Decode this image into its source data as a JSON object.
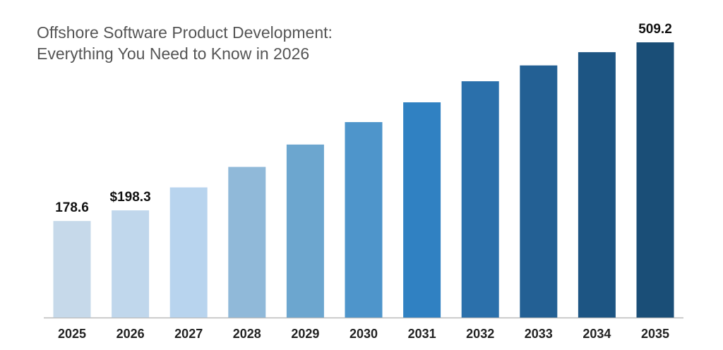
{
  "chart_data": {
    "type": "bar",
    "title": "Offshore Software Product Development:",
    "subtitle": "Everything You Need to Know in 2026",
    "categories": [
      "2025",
      "2026",
      "2027",
      "2028",
      "2029",
      "2030",
      "2031",
      "2032",
      "2033",
      "2034",
      "2035"
    ],
    "values": [
      178.6,
      198.3,
      240.8,
      278.7,
      320.1,
      361.6,
      398.2,
      437.2,
      466.5,
      491,
      509.2
    ],
    "value_labels": [
      "178.6",
      "$198.3",
      null,
      null,
      null,
      null,
      null,
      null,
      null,
      null,
      "509.2"
    ],
    "colors": [
      "#c6d9ea",
      "#c0d7ec",
      "#b8d4ee",
      "#90b9d9",
      "#6ca6cf",
      "#4e95cb",
      "#3081c2",
      "#2b70ab",
      "#236094",
      "#1d5583",
      "#1a4e77"
    ]
  }
}
